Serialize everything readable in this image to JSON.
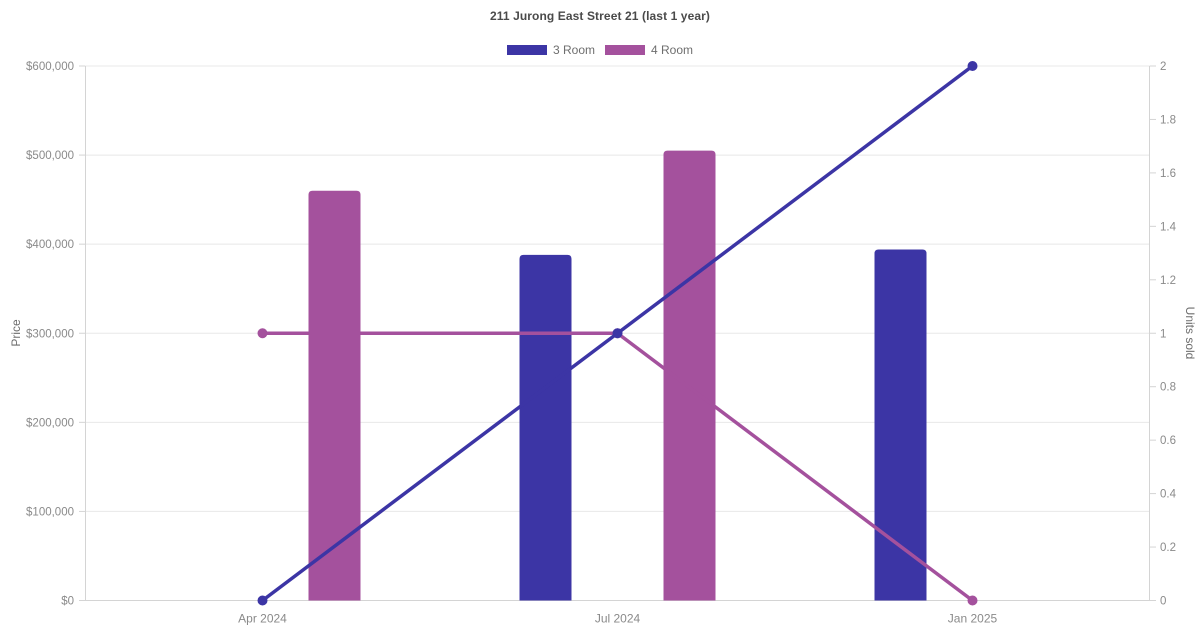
{
  "header": {
    "title": "211 Jurong East Street 21 (last 1 year)"
  },
  "legend": {
    "items": [
      {
        "label": "3 Room",
        "color": "#3c35a5"
      },
      {
        "label": "4 Room",
        "color": "#a4519d"
      }
    ]
  },
  "chart_data": {
    "type": "mixed-bar-line",
    "title": "211 Jurong East Street 21 (last 1 year)",
    "legend_position": "top",
    "grid": "horizontal-left-axis-only",
    "categories": [
      "Apr 2024",
      "Jul 2024",
      "Jan 2025"
    ],
    "bar_series": [
      {
        "name": "3 Room",
        "color": "#3c35a5",
        "axis": "left",
        "values": [
          null,
          388000,
          394000
        ]
      },
      {
        "name": "4 Room",
        "color": "#a4519d",
        "axis": "left",
        "values": [
          460000,
          505000,
          null
        ]
      }
    ],
    "line_series": [
      {
        "name": "4 Room",
        "color": "#a4519d",
        "axis": "right",
        "values": [
          1,
          1,
          0
        ]
      },
      {
        "name": "3 Room",
        "color": "#3c35a5",
        "axis": "right",
        "values": [
          0,
          1,
          2
        ]
      }
    ],
    "left_axis": {
      "label": "Price",
      "min": 0,
      "max": 600000,
      "tick_values": [
        0,
        100000,
        200000,
        300000,
        400000,
        500000,
        600000
      ],
      "tick_labels": [
        "$0",
        "$100,000",
        "$200,000",
        "$300,000",
        "$400,000",
        "$500,000",
        "$600,000"
      ]
    },
    "right_axis": {
      "label": "Units sold",
      "min": 0,
      "max": 2,
      "tick_values": [
        0,
        0.2,
        0.4,
        0.6,
        0.8,
        1,
        1.2,
        1.4,
        1.6,
        1.8,
        2
      ],
      "tick_labels": [
        "0",
        "0.2",
        "0.4",
        "0.6",
        "0.8",
        "1",
        "1.2",
        "1.4",
        "1.6",
        "1.8",
        "2"
      ]
    },
    "colors": {
      "grid_line": "#e8e8e8",
      "axis_line": "#d4d4d4",
      "tick_text": "#8a8a8a",
      "axis_title_text": "#6e6e6e",
      "title_text": "#4a4a4a"
    }
  }
}
